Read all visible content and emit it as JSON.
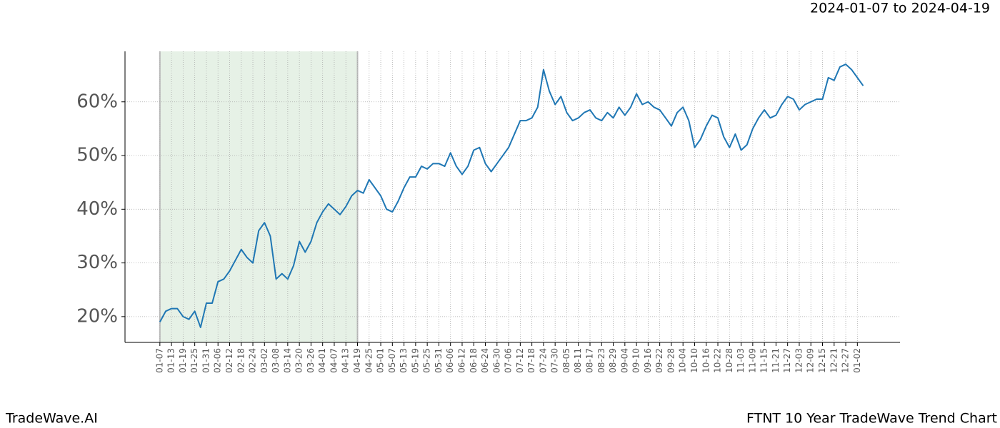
{
  "chart_data": {
    "type": "line",
    "title": "FTNT 10 Year TradeWave Trend Chart",
    "subtitle": "2024-01-07 to 2024-04-19",
    "brand": "TradeWave.AI",
    "x": [
      0,
      3,
      6,
      9,
      12,
      15,
      18,
      21,
      24,
      27,
      30,
      33,
      36,
      39,
      42,
      45,
      48,
      51,
      54,
      57,
      60,
      63,
      66,
      69,
      72,
      75,
      78,
      81,
      84,
      87,
      90,
      93,
      96,
      99,
      102,
      105,
      108,
      111,
      114,
      117,
      120,
      123,
      126,
      129,
      132,
      135,
      138,
      141,
      144,
      147,
      150,
      153,
      156,
      159,
      162,
      165,
      168,
      171,
      174,
      177,
      180,
      183,
      186,
      189,
      192,
      195,
      198,
      201,
      204,
      207,
      210,
      213,
      216,
      219,
      222,
      225,
      228,
      231,
      234,
      237,
      240,
      243,
      246,
      249,
      252,
      255,
      258,
      261,
      264,
      267,
      270,
      273,
      276,
      279,
      282,
      285,
      288,
      291,
      294,
      297,
      300,
      303,
      306,
      309,
      312,
      315,
      318,
      321,
      324,
      327,
      330,
      333,
      336,
      339,
      342,
      345,
      348,
      351,
      354,
      357,
      360,
      363
    ],
    "series": [
      {
        "name": "FTNT",
        "color": "#1f77b4",
        "values": [
          19,
          21,
          21.5,
          21.5,
          20,
          19.5,
          21,
          18,
          22.5,
          22.5,
          26.5,
          27,
          28.5,
          30.5,
          32.5,
          31,
          30,
          36,
          37.5,
          35,
          27,
          28,
          27,
          29.5,
          34,
          32,
          34,
          37.5,
          39.5,
          41,
          40,
          39,
          40.5,
          42.5,
          43.5,
          43,
          45.5,
          44,
          42.5,
          40,
          39.5,
          41.5,
          44,
          46,
          46,
          48,
          47.5,
          48.5,
          48.5,
          48,
          50.5,
          48,
          46.5,
          48,
          51,
          51.5,
          48.5,
          47,
          48.5,
          50,
          51.5,
          54,
          56.5,
          56.5,
          57,
          59,
          66,
          62,
          59.5,
          61,
          58,
          56.5,
          57,
          58,
          58.5,
          57,
          56.5,
          58,
          57,
          59,
          57.5,
          59,
          61.5,
          59.5,
          60,
          59,
          58.5,
          57,
          55.5,
          58,
          59,
          56.5,
          51.5,
          53,
          55.5,
          57.5,
          57,
          53.5,
          51.5,
          54,
          51,
          52,
          55,
          57,
          58.5,
          57,
          57.5,
          59.5,
          61,
          60.5,
          58.5,
          59.5,
          60,
          60.5,
          60.5,
          64.5,
          64,
          66.5,
          67,
          66,
          64.5,
          63
        ]
      }
    ],
    "shade": {
      "start": 0,
      "end": 102,
      "color": "#e6f1e6"
    },
    "xlim": [
      -18,
      382
    ],
    "xticks": [
      {
        "value": 0,
        "label": "01-07"
      },
      {
        "value": 6,
        "label": "01-13"
      },
      {
        "value": 12,
        "label": "01-19"
      },
      {
        "value": 18,
        "label": "01-25"
      },
      {
        "value": 24,
        "label": "01-31"
      },
      {
        "value": 30,
        "label": "02-06"
      },
      {
        "value": 36,
        "label": "02-12"
      },
      {
        "value": 42,
        "label": "02-18"
      },
      {
        "value": 48,
        "label": "02-24"
      },
      {
        "value": 54,
        "label": "03-02"
      },
      {
        "value": 60,
        "label": "03-08"
      },
      {
        "value": 66,
        "label": "03-14"
      },
      {
        "value": 72,
        "label": "03-20"
      },
      {
        "value": 78,
        "label": "03-26"
      },
      {
        "value": 84,
        "label": "04-01"
      },
      {
        "value": 90,
        "label": "04-07"
      },
      {
        "value": 96,
        "label": "04-13"
      },
      {
        "value": 102,
        "label": "04-19"
      },
      {
        "value": 108,
        "label": "04-25"
      },
      {
        "value": 114,
        "label": "05-01"
      },
      {
        "value": 120,
        "label": "05-07"
      },
      {
        "value": 126,
        "label": "05-13"
      },
      {
        "value": 132,
        "label": "05-19"
      },
      {
        "value": 138,
        "label": "05-25"
      },
      {
        "value": 144,
        "label": "05-31"
      },
      {
        "value": 150,
        "label": "06-06"
      },
      {
        "value": 156,
        "label": "06-12"
      },
      {
        "value": 162,
        "label": "06-18"
      },
      {
        "value": 168,
        "label": "06-24"
      },
      {
        "value": 174,
        "label": "06-30"
      },
      {
        "value": 180,
        "label": "07-06"
      },
      {
        "value": 186,
        "label": "07-12"
      },
      {
        "value": 192,
        "label": "07-18"
      },
      {
        "value": 198,
        "label": "07-24"
      },
      {
        "value": 204,
        "label": "07-30"
      },
      {
        "value": 210,
        "label": "08-05"
      },
      {
        "value": 216,
        "label": "08-11"
      },
      {
        "value": 222,
        "label": "08-17"
      },
      {
        "value": 228,
        "label": "08-23"
      },
      {
        "value": 234,
        "label": "08-29"
      },
      {
        "value": 240,
        "label": "09-04"
      },
      {
        "value": 246,
        "label": "09-10"
      },
      {
        "value": 252,
        "label": "09-16"
      },
      {
        "value": 258,
        "label": "09-22"
      },
      {
        "value": 264,
        "label": "09-28"
      },
      {
        "value": 270,
        "label": "10-04"
      },
      {
        "value": 276,
        "label": "10-10"
      },
      {
        "value": 282,
        "label": "10-16"
      },
      {
        "value": 288,
        "label": "10-22"
      },
      {
        "value": 294,
        "label": "10-28"
      },
      {
        "value": 300,
        "label": "11-03"
      },
      {
        "value": 306,
        "label": "11-09"
      },
      {
        "value": 312,
        "label": "11-15"
      },
      {
        "value": 318,
        "label": "11-21"
      },
      {
        "value": 324,
        "label": "11-27"
      },
      {
        "value": 330,
        "label": "12-03"
      },
      {
        "value": 336,
        "label": "12-09"
      },
      {
        "value": 342,
        "label": "12-15"
      },
      {
        "value": 348,
        "label": "12-21"
      },
      {
        "value": 354,
        "label": "12-27"
      },
      {
        "value": 360,
        "label": "01-02"
      }
    ],
    "ylim": [
      15.2,
      69.4
    ],
    "yticks": [
      {
        "value": 20,
        "label": "20%"
      },
      {
        "value": 30,
        "label": "30%"
      },
      {
        "value": 40,
        "label": "40%"
      },
      {
        "value": 50,
        "label": "50%"
      },
      {
        "value": 60,
        "label": "60%"
      }
    ],
    "grid": true
  }
}
